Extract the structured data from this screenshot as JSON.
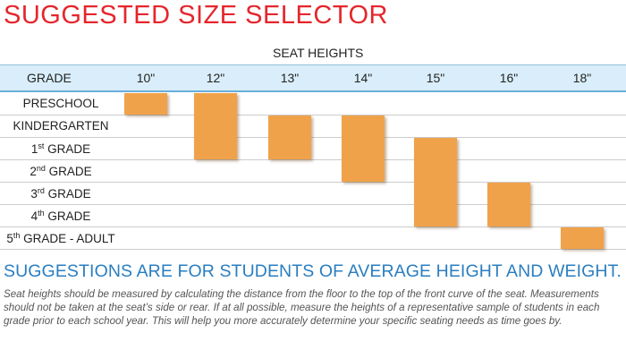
{
  "title": "SUGGESTED SIZE SELECTOR",
  "colors": {
    "title": "#e5262c",
    "bar": "#f0a24a",
    "header_band": "#d9eefa",
    "subtitle": "#2a7ec0"
  },
  "chart_data": {
    "type": "table",
    "column_group_label": "SEAT HEIGHTS",
    "row_header": "GRADE",
    "seat_heights": [
      "10\"",
      "12\"",
      "13\"",
      "14\"",
      "15\"",
      "16\"",
      "18\""
    ],
    "grades": [
      {
        "name": "PRESCHOOL",
        "ordinal": "",
        "rest": ""
      },
      {
        "name": "KINDERGARTEN",
        "ordinal": "",
        "rest": ""
      },
      {
        "name": "1",
        "ordinal": "st",
        "rest": " GRADE"
      },
      {
        "name": "2",
        "ordinal": "nd",
        "rest": " GRADE"
      },
      {
        "name": "3",
        "ordinal": "rd",
        "rest": " GRADE"
      },
      {
        "name": "4",
        "ordinal": "th",
        "rest": " GRADE"
      },
      {
        "name": "5",
        "ordinal": "th",
        "rest": " GRADE - ADULT"
      }
    ],
    "suggestions": [
      {
        "seat_height": "10\"",
        "from_grade": "PRESCHOOL",
        "to_grade": "PRESCHOOL"
      },
      {
        "seat_height": "12\"",
        "from_grade": "PRESCHOOL",
        "to_grade": "1st GRADE"
      },
      {
        "seat_height": "13\"",
        "from_grade": "KINDERGARTEN",
        "to_grade": "1st GRADE"
      },
      {
        "seat_height": "14\"",
        "from_grade": "KINDERGARTEN",
        "to_grade": "2nd GRADE"
      },
      {
        "seat_height": "15\"",
        "from_grade": "1st GRADE",
        "to_grade": "4th GRADE"
      },
      {
        "seat_height": "16\"",
        "from_grade": "3rd GRADE",
        "to_grade": "4th GRADE"
      },
      {
        "seat_height": "18\"",
        "from_grade": "5th GRADE - ADULT",
        "to_grade": "5th GRADE - ADULT"
      }
    ]
  },
  "subtitle": "SUGGESTIONS ARE FOR STUDENTS OF AVERAGE HEIGHT AND WEIGHT.",
  "body": "Seat heights should be measured by calculating the distance from the floor to the top of the front curve of the seat. Measurements should not be taken at the seat’s side or rear.  If at all possible, measure the heights of a representative sample of students in each grade prior to each school year.  This will help you more accurately determine your specific seating needs as time goes by."
}
